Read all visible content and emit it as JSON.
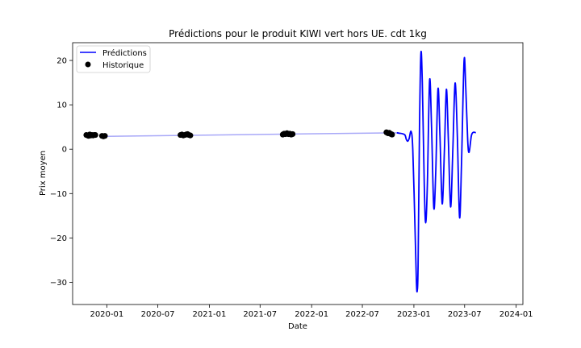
{
  "chart_data": {
    "type": "line",
    "title": "Prédictions pour le produit KIWI vert hors UE. cdt 1kg",
    "xlabel": "Date",
    "ylabel": "Prix moyen",
    "x_range": [
      "2019-09-01",
      "2024-01-25"
    ],
    "ylim": [
      -35,
      24
    ],
    "x_ticks": [
      "2020-01",
      "2020-07",
      "2021-01",
      "2021-07",
      "2022-01",
      "2022-07",
      "2023-01",
      "2023-07",
      "2024-01"
    ],
    "y_ticks": [
      20,
      10,
      0,
      -10,
      -20,
      -30
    ],
    "y_tick_labels": [
      "20",
      "10",
      "0",
      "−10",
      "−20",
      "−30"
    ],
    "grid": false,
    "legend_position": "top-left",
    "colors": {
      "prediction": "#0000ff",
      "trend": "#a8a8f8",
      "historique": "#000000"
    },
    "series": [
      {
        "name": "Prédictions",
        "style": "line",
        "trend_points": [
          [
            "2020-01-01",
            2.9
          ],
          [
            "2022-11-01",
            3.7
          ]
        ],
        "points": [
          [
            "2022-11-01",
            3.7
          ],
          [
            "2022-11-10",
            3.6
          ],
          [
            "2022-11-20",
            3.5
          ],
          [
            "2022-11-30",
            3.2
          ],
          [
            "2022-12-05",
            2.2
          ],
          [
            "2022-12-10",
            1.8
          ],
          [
            "2022-12-15",
            2.4
          ],
          [
            "2022-12-22",
            4.0
          ],
          [
            "2022-12-28",
            0.0
          ],
          [
            "2023-01-05",
            -18.0
          ],
          [
            "2023-01-10",
            -30.0
          ],
          [
            "2023-01-13",
            -31.8
          ],
          [
            "2023-01-16",
            -26.0
          ],
          [
            "2023-01-21",
            5.0
          ],
          [
            "2023-01-26",
            21.6
          ],
          [
            "2023-01-31",
            15.0
          ],
          [
            "2023-02-07",
            -8.0
          ],
          [
            "2023-02-12",
            -16.6
          ],
          [
            "2023-02-18",
            -8.0
          ],
          [
            "2023-02-26",
            15.5
          ],
          [
            "2023-03-05",
            5.0
          ],
          [
            "2023-03-13",
            -13.2
          ],
          [
            "2023-03-20",
            -5.0
          ],
          [
            "2023-03-28",
            13.6
          ],
          [
            "2023-04-04",
            3.0
          ],
          [
            "2023-04-12",
            -12.3
          ],
          [
            "2023-04-20",
            0.0
          ],
          [
            "2023-04-27",
            13.5
          ],
          [
            "2023-05-04",
            2.0
          ],
          [
            "2023-05-12",
            -13.0
          ],
          [
            "2023-05-20",
            0.0
          ],
          [
            "2023-05-28",
            14.9
          ],
          [
            "2023-06-05",
            3.0
          ],
          [
            "2023-06-13",
            -15.4
          ],
          [
            "2023-06-20",
            -3.0
          ],
          [
            "2023-06-29",
            19.9
          ],
          [
            "2023-07-05",
            14.0
          ],
          [
            "2023-07-12",
            2.0
          ],
          [
            "2023-07-17",
            -0.7
          ],
          [
            "2023-07-25",
            3.0
          ],
          [
            "2023-08-01",
            3.8
          ],
          [
            "2023-08-10",
            3.7
          ]
        ]
      },
      {
        "name": "Historique",
        "style": "points",
        "points": [
          [
            "2019-10-20",
            3.2
          ],
          [
            "2019-10-24",
            3.1
          ],
          [
            "2019-10-28",
            3.0
          ],
          [
            "2019-11-01",
            3.3
          ],
          [
            "2019-11-05",
            3.1
          ],
          [
            "2019-11-09",
            3.2
          ],
          [
            "2019-11-13",
            3.1
          ],
          [
            "2019-11-17",
            3.2
          ],
          [
            "2019-11-21",
            3.2
          ],
          [
            "2019-12-15",
            3.0
          ],
          [
            "2019-12-20",
            2.9
          ],
          [
            "2019-12-25",
            3.0
          ],
          [
            "2020-09-20",
            3.2
          ],
          [
            "2020-09-25",
            3.3
          ],
          [
            "2020-09-30",
            3.1
          ],
          [
            "2020-10-05",
            3.2
          ],
          [
            "2020-10-10",
            3.3
          ],
          [
            "2020-10-15",
            3.4
          ],
          [
            "2020-10-20",
            3.2
          ],
          [
            "2020-10-25",
            3.1
          ],
          [
            "2021-09-20",
            3.3
          ],
          [
            "2021-09-25",
            3.5
          ],
          [
            "2021-09-30",
            3.4
          ],
          [
            "2021-10-05",
            3.6
          ],
          [
            "2021-10-10",
            3.4
          ],
          [
            "2021-10-15",
            3.5
          ],
          [
            "2021-10-20",
            3.3
          ],
          [
            "2021-10-25",
            3.4
          ],
          [
            "2022-09-25",
            3.8
          ],
          [
            "2022-09-30",
            3.6
          ],
          [
            "2022-10-05",
            3.7
          ],
          [
            "2022-10-08",
            3.5
          ],
          [
            "2022-10-12",
            3.4
          ],
          [
            "2022-10-15",
            3.3
          ]
        ]
      }
    ]
  }
}
